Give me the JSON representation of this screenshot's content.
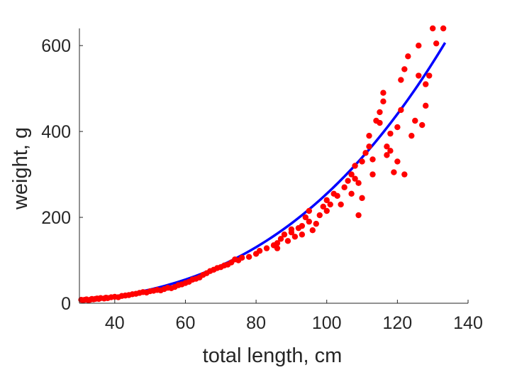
{
  "chart_data": {
    "type": "scatter",
    "xlabel": "total length, cm",
    "ylabel": "weight, g",
    "xlim": [
      30,
      140
    ],
    "ylim": [
      0,
      640
    ],
    "xticks": [
      40,
      60,
      80,
      100,
      120,
      140
    ],
    "yticks": [
      0,
      200,
      400,
      600
    ],
    "grid": false,
    "colors": {
      "points": "#ff0000",
      "fit": "#0000ff",
      "axis": "#262626"
    },
    "series": [
      {
        "kind": "scatter",
        "points": [
          [
            30.5,
            8
          ],
          [
            31,
            7
          ],
          [
            31.5,
            8
          ],
          [
            32,
            9
          ],
          [
            32.5,
            7
          ],
          [
            33,
            8
          ],
          [
            33.5,
            10
          ],
          [
            34,
            9
          ],
          [
            34.5,
            10
          ],
          [
            35,
            11
          ],
          [
            35.5,
            10
          ],
          [
            36,
            12
          ],
          [
            37,
            11
          ],
          [
            37.5,
            13
          ],
          [
            38,
            12
          ],
          [
            39,
            14
          ],
          [
            40,
            15
          ],
          [
            41,
            14
          ],
          [
            42,
            17
          ],
          [
            43,
            18
          ],
          [
            44,
            19
          ],
          [
            45,
            21
          ],
          [
            46,
            22
          ],
          [
            47,
            24
          ],
          [
            48,
            26
          ],
          [
            49,
            25
          ],
          [
            50,
            28
          ],
          [
            51,
            29
          ],
          [
            52,
            31
          ],
          [
            53,
            30
          ],
          [
            54,
            33
          ],
          [
            55,
            36
          ],
          [
            56,
            35
          ],
          [
            57,
            38
          ],
          [
            58,
            42
          ],
          [
            59,
            44
          ],
          [
            60,
            47
          ],
          [
            61,
            50
          ],
          [
            62,
            55
          ],
          [
            63,
            57
          ],
          [
            64,
            60
          ],
          [
            65,
            66
          ],
          [
            66,
            70
          ],
          [
            67,
            75
          ],
          [
            68,
            78
          ],
          [
            69,
            82
          ],
          [
            70,
            84
          ],
          [
            71,
            88
          ],
          [
            72,
            90
          ],
          [
            73,
            95
          ],
          [
            74,
            102
          ],
          [
            75,
            100
          ],
          [
            76,
            106
          ],
          [
            78,
            108
          ],
          [
            80,
            115
          ],
          [
            81,
            122
          ],
          [
            83,
            128
          ],
          [
            85,
            135
          ],
          [
            86,
            140
          ],
          [
            86,
            128
          ],
          [
            87,
            150
          ],
          [
            88,
            160
          ],
          [
            89,
            145
          ],
          [
            90,
            165
          ],
          [
            90,
            172
          ],
          [
            91,
            155
          ],
          [
            92,
            175
          ],
          [
            93,
            180
          ],
          [
            93,
            160
          ],
          [
            94,
            200
          ],
          [
            95,
            215
          ],
          [
            95,
            190
          ],
          [
            96,
            170
          ],
          [
            97,
            185
          ],
          [
            98,
            205
          ],
          [
            99,
            225
          ],
          [
            100,
            240
          ],
          [
            100,
            215
          ],
          [
            101,
            230
          ],
          [
            102,
            255
          ],
          [
            103,
            250
          ],
          [
            104,
            230
          ],
          [
            105,
            270
          ],
          [
            106,
            285
          ],
          [
            107,
            300
          ],
          [
            107,
            255
          ],
          [
            108,
            320
          ],
          [
            108,
            290
          ],
          [
            109,
            280
          ],
          [
            109,
            205
          ],
          [
            110,
            245
          ],
          [
            110,
            330
          ],
          [
            111,
            350
          ],
          [
            112,
            365
          ],
          [
            112,
            390
          ],
          [
            113,
            335
          ],
          [
            113,
            300
          ],
          [
            114,
            425
          ],
          [
            115,
            420
          ],
          [
            115,
            445
          ],
          [
            116,
            490
          ],
          [
            116,
            470
          ],
          [
            117,
            365
          ],
          [
            117,
            345
          ],
          [
            118,
            395
          ],
          [
            118,
            355
          ],
          [
            119,
            305
          ],
          [
            120,
            330
          ],
          [
            120,
            410
          ],
          [
            121,
            450
          ],
          [
            121,
            520
          ],
          [
            122,
            545
          ],
          [
            122,
            300
          ],
          [
            123,
            575
          ],
          [
            124,
            390
          ],
          [
            125,
            425
          ],
          [
            126,
            530
          ],
          [
            126,
            600
          ],
          [
            127,
            415
          ],
          [
            128,
            460
          ],
          [
            128,
            510
          ],
          [
            129,
            530
          ],
          [
            130,
            640
          ],
          [
            131,
            605
          ],
          [
            133,
            640
          ]
        ]
      },
      {
        "kind": "line",
        "fit_model": {
          "a": 0.000255,
          "b": 3.0
        },
        "x_range": [
          30,
          133.5
        ]
      }
    ]
  }
}
